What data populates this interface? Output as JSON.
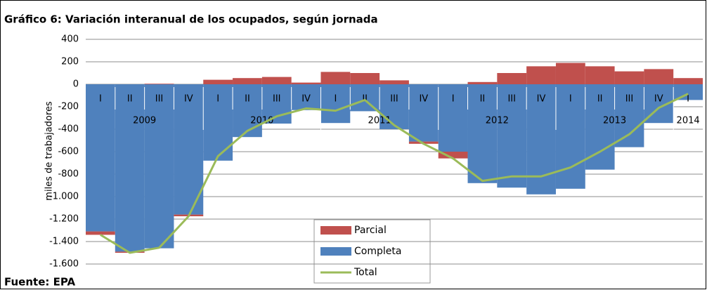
{
  "chart_data": {
    "type": "bar",
    "title": "Gráfico 6: Variación interanual de los ocupados, según jornada",
    "source": "Fuente: EPA",
    "y_label": "miles de trabajadores",
    "categories": [
      "I",
      "II",
      "III",
      "IV",
      "I",
      "II",
      "III",
      "IV",
      "I",
      "II",
      "III",
      "IV",
      "I",
      "II",
      "III",
      "IV",
      "I",
      "II",
      "III",
      "IV",
      "I"
    ],
    "years": [
      "2009",
      "2010",
      "2011",
      "2012",
      "2013",
      "2014"
    ],
    "series": [
      {
        "name": "Parcial",
        "color": "#c0504d",
        "values": [
          -30,
          -10,
          5,
          -15,
          40,
          55,
          65,
          15,
          110,
          100,
          35,
          -20,
          -60,
          20,
          100,
          160,
          190,
          160,
          115,
          135,
          55
        ]
      },
      {
        "name": "Completa",
        "color": "#4f81bd",
        "values": [
          -1310,
          -1490,
          -1460,
          -1160,
          -680,
          -470,
          -350,
          -230,
          -345,
          -240,
          -400,
          -510,
          -600,
          -880,
          -920,
          -980,
          -930,
          -760,
          -560,
          -345,
          -140
        ]
      },
      {
        "name": "Total",
        "color": "#9bbb59",
        "type": "line",
        "values": [
          -1340,
          -1500,
          -1455,
          -1175,
          -640,
          -415,
          -285,
          -215,
          -235,
          -140,
          -365,
          -530,
          -660,
          -860,
          -820,
          -820,
          -740,
          -600,
          -445,
          -210,
          -85
        ]
      }
    ],
    "ylim": [
      -1600,
      400
    ],
    "yticks": [
      400,
      200,
      0,
      -200,
      -400,
      -600,
      -800,
      {
        "value": -1000,
        "label": "-1.000"
      },
      {
        "value": -1200,
        "label": "-1.200"
      },
      {
        "value": -1400,
        "label": "-1.400"
      },
      {
        "value": -1600,
        "label": "-1.600"
      }
    ],
    "grid": true
  }
}
